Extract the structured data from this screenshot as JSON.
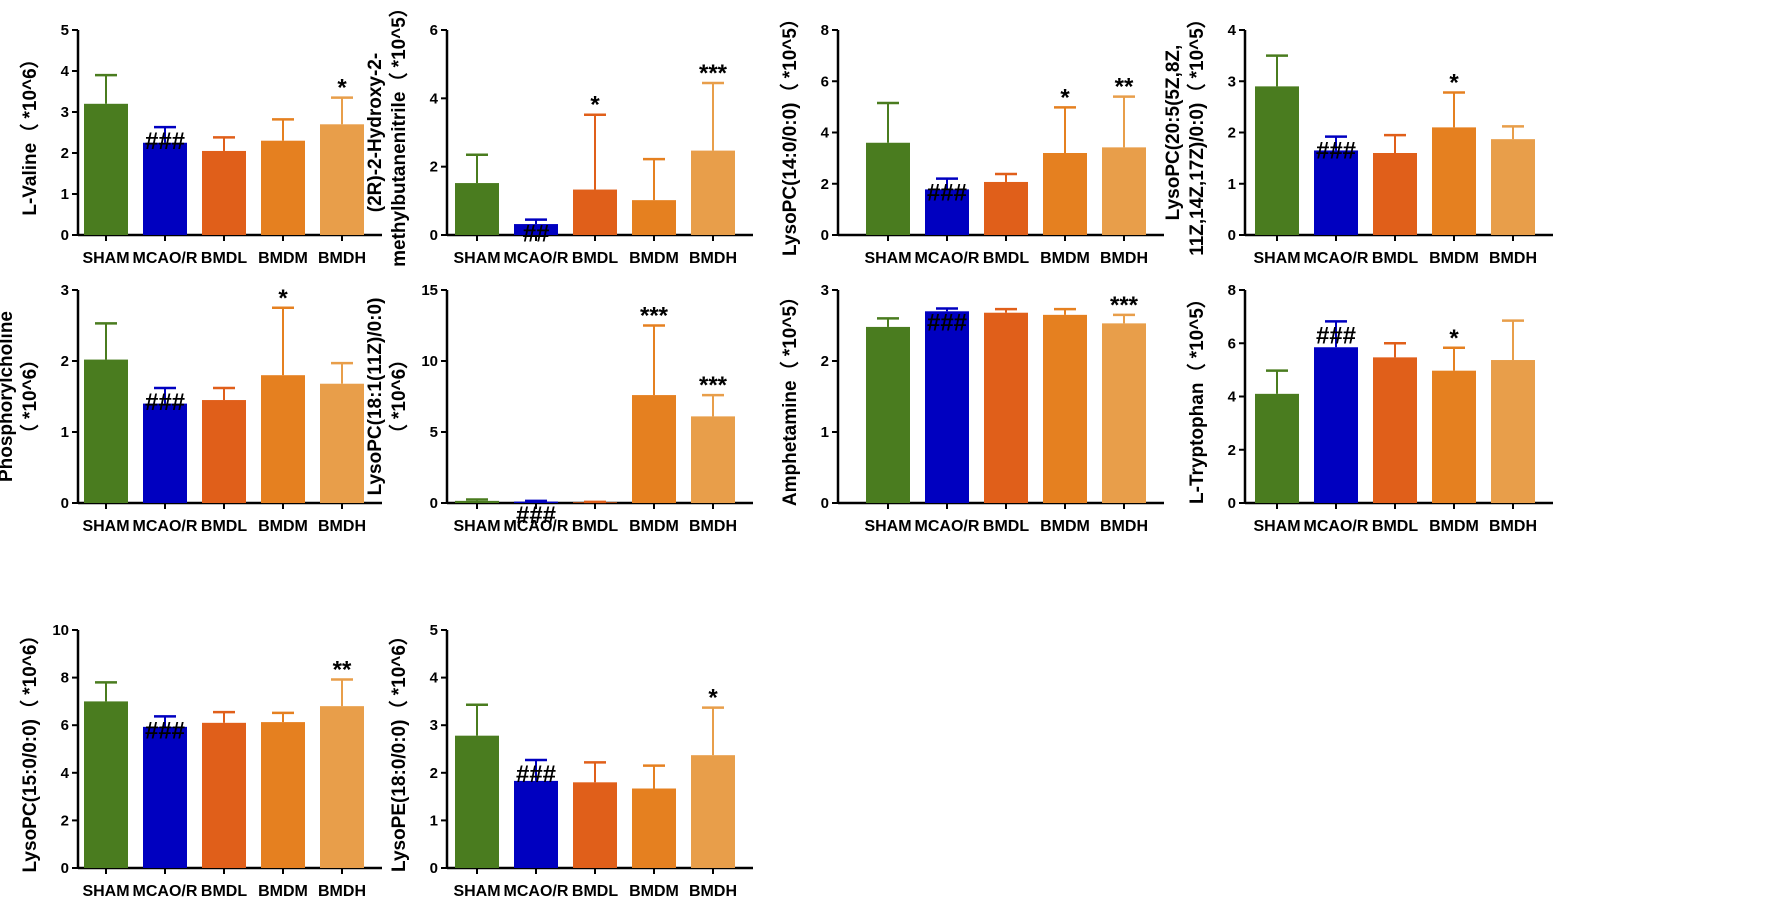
{
  "colors": {
    "SHAM": "#4a7c1f",
    "MCAO/R": "#0000c0",
    "BMDL": "#e05f1a",
    "BMDM": "#e58020",
    "BMDH": "#e89e4a"
  },
  "chart_data": [
    {
      "type": "bar",
      "ylabel_lines": [
        "L-Valine（ *10^6）"
      ],
      "categories": [
        "SHAM",
        "MCAO/R",
        "BMDL",
        "BMDM",
        "BMDH"
      ],
      "values": [
        3.2,
        2.25,
        2.05,
        2.3,
        2.7
      ],
      "error_upper": [
        3.9,
        2.63,
        2.38,
        2.82,
        3.35
      ],
      "annotations": [
        "",
        "###",
        "",
        "",
        "*"
      ],
      "ylim": [
        0,
        5
      ],
      "yticks": [
        0,
        1,
        2,
        3,
        4,
        5
      ]
    },
    {
      "type": "bar",
      "ylabel_lines": [
        "(2R)-2-Hydroxy-2-",
        "methylbutanenitrile（ *10^5）"
      ],
      "categories": [
        "SHAM",
        "MCAO/R",
        "BMDL",
        "BMDM",
        "BMDH"
      ],
      "values": [
        1.52,
        0.32,
        1.33,
        1.02,
        2.47
      ],
      "error_upper": [
        2.35,
        0.45,
        3.52,
        2.22,
        4.45
      ],
      "annotations": [
        "",
        "##",
        "*",
        "",
        "***"
      ],
      "ylim": [
        0,
        6
      ],
      "yticks": [
        0,
        2,
        4,
        6
      ]
    },
    {
      "type": "bar",
      "ylabel_lines": [
        "LysoPC(14:0/0:0)（ *10^5）"
      ],
      "categories": [
        "SHAM",
        "MCAO/R",
        "BMDL",
        "BMDM",
        "BMDH"
      ],
      "values": [
        3.6,
        1.78,
        2.07,
        3.2,
        3.42
      ],
      "error_upper": [
        5.15,
        2.2,
        2.38,
        4.98,
        5.4
      ],
      "annotations": [
        "",
        "###",
        "",
        "*",
        "**"
      ],
      "ylim": [
        0,
        8
      ],
      "yticks": [
        0,
        2,
        4,
        6,
        8
      ]
    },
    {
      "type": "bar",
      "ylabel_lines": [
        "LysoPC(20:5(5Z,8Z,",
        "11Z,14Z,17Z)/0:0)（ *10^5）"
      ],
      "categories": [
        "SHAM",
        "MCAO/R",
        "BMDL",
        "BMDM",
        "BMDH"
      ],
      "values": [
        2.9,
        1.65,
        1.6,
        2.1,
        1.87
      ],
      "error_upper": [
        3.5,
        1.92,
        1.95,
        2.78,
        2.12
      ],
      "annotations": [
        "",
        "###",
        "",
        "*",
        ""
      ],
      "ylim": [
        0,
        4
      ],
      "yticks": [
        0,
        1,
        2,
        3,
        4
      ]
    },
    {
      "type": "bar",
      "ylabel_lines": [
        "Phosphorylcholine",
        "（ *10^6）"
      ],
      "categories": [
        "SHAM",
        "MCAO/R",
        "BMDL",
        "BMDM",
        "BMDH"
      ],
      "values": [
        2.02,
        1.4,
        1.45,
        1.8,
        1.68
      ],
      "error_upper": [
        2.53,
        1.62,
        1.62,
        2.75,
        1.97
      ],
      "annotations": [
        "",
        "###",
        "",
        "*",
        ""
      ],
      "ylim": [
        0,
        3
      ],
      "yticks": [
        0,
        1,
        2,
        3
      ]
    },
    {
      "type": "bar",
      "ylabel_lines": [
        "LysoPC(18:1(11Z)/0:0)",
        "（ *10^6）"
      ],
      "categories": [
        "SHAM",
        "MCAO/R",
        "BMDL",
        "BMDM",
        "BMDH"
      ],
      "values": [
        0.15,
        0.1,
        0.05,
        7.6,
        6.1
      ],
      "error_upper": [
        0.25,
        0.15,
        0.08,
        12.5,
        7.6
      ],
      "annotations": [
        "",
        "###",
        "",
        "***",
        "***"
      ],
      "ylim": [
        0,
        15
      ],
      "yticks": [
        0,
        5,
        10,
        15
      ]
    },
    {
      "type": "bar",
      "ylabel_lines": [
        "Amphetamine（ *10^5）"
      ],
      "categories": [
        "SHAM",
        "MCAO/R",
        "BMDL",
        "BMDM",
        "BMDH"
      ],
      "values": [
        2.48,
        2.7,
        2.68,
        2.65,
        2.53
      ],
      "error_upper": [
        2.6,
        2.74,
        2.73,
        2.73,
        2.65
      ],
      "annotations": [
        "",
        "###",
        "",
        "",
        "***"
      ],
      "ylim": [
        0,
        3
      ],
      "yticks": [
        0,
        1,
        2,
        3
      ]
    },
    {
      "type": "bar",
      "ylabel_lines": [
        "L-Tryptophan（ *10^5）"
      ],
      "categories": [
        "SHAM",
        "MCAO/R",
        "BMDL",
        "BMDM",
        "BMDH"
      ],
      "values": [
        4.1,
        5.85,
        5.47,
        4.97,
        5.37
      ],
      "error_upper": [
        4.97,
        6.82,
        6.0,
        5.83,
        6.85
      ],
      "annotations": [
        "",
        "###",
        "",
        "*",
        ""
      ],
      "ylim": [
        0,
        8
      ],
      "yticks": [
        0,
        2,
        4,
        6,
        8
      ]
    },
    {
      "type": "bar",
      "ylabel_lines": [
        "LysoPC(15:0/0:0)（ *10^6）"
      ],
      "categories": [
        "SHAM",
        "MCAO/R",
        "BMDL",
        "BMDM",
        "BMDH"
      ],
      "values": [
        7.0,
        5.93,
        6.1,
        6.13,
        6.8
      ],
      "error_upper": [
        7.8,
        6.37,
        6.55,
        6.52,
        7.92
      ],
      "annotations": [
        "",
        "###",
        "",
        "",
        "**"
      ],
      "ylim": [
        0,
        10
      ],
      "yticks": [
        0,
        2,
        4,
        6,
        8,
        10
      ]
    },
    {
      "type": "bar",
      "ylabel_lines": [
        "LysoPE(18:0/0:0)（ *10^6）"
      ],
      "categories": [
        "SHAM",
        "MCAO/R",
        "BMDL",
        "BMDM",
        "BMDH"
      ],
      "values": [
        2.78,
        1.83,
        1.8,
        1.67,
        2.37
      ],
      "error_upper": [
        3.43,
        2.27,
        2.22,
        2.15,
        3.37
      ],
      "annotations": [
        "",
        "###",
        "",
        "",
        "*"
      ],
      "ylim": [
        0,
        5
      ],
      "yticks": [
        0,
        1,
        2,
        3,
        4,
        5
      ]
    }
  ]
}
